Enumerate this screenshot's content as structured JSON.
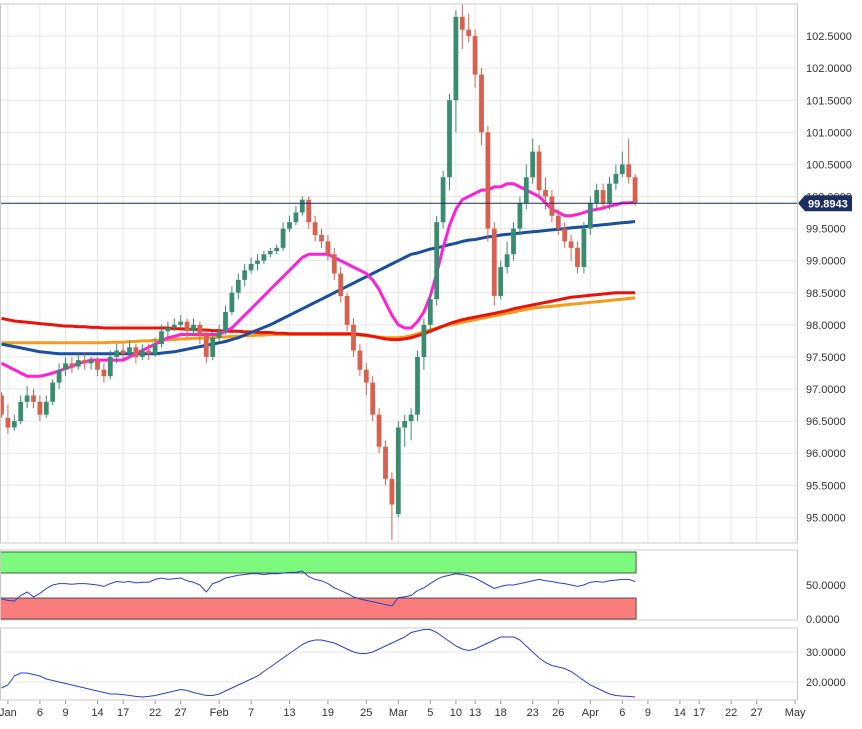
{
  "chart_data": {
    "type": "candlestick",
    "last_price_label": "99.8943",
    "last_price": 99.8943,
    "x_tick_labels": [
      "Jan",
      "6",
      "9",
      "14",
      "17",
      "22",
      "27",
      "Feb",
      "7",
      "13",
      "19",
      "25",
      "Mar",
      "5",
      "10",
      "13",
      "18",
      "23",
      "26",
      "Apr",
      "6",
      "9",
      "14",
      "17",
      "22",
      "27",
      "May"
    ],
    "x_tick_index": [
      1,
      6,
      10,
      15,
      19,
      24,
      28,
      34,
      39,
      45,
      51,
      57,
      62,
      67,
      71,
      74,
      78,
      83,
      87,
      92,
      97,
      101,
      106,
      109,
      114,
      118,
      124
    ],
    "price_axis": {
      "ylim": [
        94.6,
        103.0
      ],
      "ticks": [
        95.0,
        95.5,
        96.0,
        96.5,
        97.0,
        97.5,
        98.0,
        98.5,
        99.0,
        99.5,
        100.0,
        100.5,
        101.0,
        101.5,
        102.0,
        102.5
      ],
      "tick_labels": [
        "95.0000",
        "95.5000",
        "96.0000",
        "96.5000",
        "97.0000",
        "97.5000",
        "98.0000",
        "98.5000",
        "99.0000",
        "99.5000",
        "100.0000",
        "100.5000",
        "101.0000",
        "101.5000",
        "102.0000",
        "102.5000"
      ]
    },
    "candles": [
      [
        96.9,
        96.6,
        96.95,
        96.55
      ],
      [
        96.55,
        96.4,
        96.75,
        96.3
      ],
      [
        96.4,
        96.5,
        96.6,
        96.35
      ],
      [
        96.5,
        96.8,
        96.9,
        96.45
      ],
      [
        96.8,
        96.9,
        97.05,
        96.7
      ],
      [
        96.9,
        96.8,
        97.0,
        96.7
      ],
      [
        96.8,
        96.6,
        96.9,
        96.5
      ],
      [
        96.6,
        96.8,
        96.9,
        96.55
      ],
      [
        96.8,
        97.1,
        97.15,
        96.75
      ],
      [
        97.1,
        97.3,
        97.4,
        97.0
      ],
      [
        97.3,
        97.4,
        97.5,
        97.2
      ],
      [
        97.4,
        97.35,
        97.5,
        97.25
      ],
      [
        97.35,
        97.45,
        97.55,
        97.3
      ],
      [
        97.45,
        97.4,
        97.55,
        97.3
      ],
      [
        97.4,
        97.45,
        97.5,
        97.3
      ],
      [
        97.45,
        97.3,
        97.5,
        97.2
      ],
      [
        97.3,
        97.2,
        97.4,
        97.1
      ],
      [
        97.2,
        97.5,
        97.6,
        97.15
      ],
      [
        97.5,
        97.6,
        97.7,
        97.4
      ],
      [
        97.6,
        97.55,
        97.7,
        97.45
      ],
      [
        97.55,
        97.65,
        97.75,
        97.5
      ],
      [
        97.65,
        97.5,
        97.7,
        97.4
      ],
      [
        97.5,
        97.6,
        97.7,
        97.45
      ],
      [
        97.6,
        97.55,
        97.7,
        97.45
      ],
      [
        97.55,
        97.7,
        97.8,
        97.5
      ],
      [
        97.7,
        97.9,
        98.0,
        97.65
      ],
      [
        97.9,
        97.95,
        98.05,
        97.8
      ],
      [
        97.95,
        98.0,
        98.1,
        97.9
      ],
      [
        98.0,
        98.05,
        98.15,
        97.95
      ],
      [
        98.05,
        97.9,
        98.1,
        97.8
      ],
      [
        97.9,
        98.0,
        98.1,
        97.85
      ],
      [
        98.0,
        97.85,
        98.05,
        97.7
      ],
      [
        97.85,
        97.5,
        97.9,
        97.4
      ],
      [
        97.5,
        97.8,
        97.9,
        97.45
      ],
      [
        97.8,
        97.9,
        98.0,
        97.75
      ],
      [
        97.9,
        98.2,
        98.3,
        97.85
      ],
      [
        98.2,
        98.5,
        98.6,
        98.15
      ],
      [
        98.5,
        98.7,
        98.8,
        98.4
      ],
      [
        98.7,
        98.85,
        98.95,
        98.6
      ],
      [
        98.85,
        98.95,
        99.05,
        98.8
      ],
      [
        98.95,
        99.0,
        99.1,
        98.85
      ],
      [
        99.0,
        99.1,
        99.15,
        98.95
      ],
      [
        99.1,
        99.15,
        99.2,
        99.05
      ],
      [
        99.15,
        99.2,
        99.25,
        99.1
      ],
      [
        99.2,
        99.5,
        99.6,
        99.15
      ],
      [
        99.5,
        99.6,
        99.7,
        99.45
      ],
      [
        99.6,
        99.75,
        99.85,
        99.55
      ],
      [
        99.75,
        99.95,
        100.0,
        99.7
      ],
      [
        99.95,
        99.6,
        100.0,
        99.5
      ],
      [
        99.6,
        99.4,
        99.7,
        99.3
      ],
      [
        99.4,
        99.3,
        99.5,
        99.2
      ],
      [
        99.3,
        99.1,
        99.4,
        99.0
      ],
      [
        99.1,
        98.8,
        99.2,
        98.7
      ],
      [
        98.8,
        98.45,
        98.9,
        98.35
      ],
      [
        98.45,
        98.0,
        98.5,
        97.9
      ],
      [
        98.0,
        97.6,
        98.1,
        97.5
      ],
      [
        97.6,
        97.3,
        97.7,
        97.2
      ],
      [
        97.3,
        97.1,
        97.4,
        96.9
      ],
      [
        97.1,
        96.6,
        97.2,
        96.5
      ],
      [
        96.6,
        96.1,
        96.7,
        96.0
      ],
      [
        96.1,
        95.6,
        96.2,
        95.5
      ],
      [
        95.6,
        95.2,
        95.7,
        94.65
      ],
      [
        95.05,
        96.4,
        96.5,
        95.0
      ],
      [
        96.4,
        96.5,
        96.6,
        96.1
      ],
      [
        96.5,
        96.6,
        96.7,
        96.2
      ],
      [
        96.6,
        97.5,
        97.6,
        96.5
      ],
      [
        97.5,
        98.0,
        98.1,
        97.3
      ],
      [
        98.0,
        98.4,
        98.5,
        97.9
      ],
      [
        98.4,
        99.6,
        99.7,
        98.3
      ],
      [
        99.6,
        100.3,
        100.4,
        99.5
      ],
      [
        100.3,
        101.5,
        101.6,
        100.1
      ],
      [
        101.5,
        102.8,
        102.9,
        101.0
      ],
      [
        102.8,
        102.6,
        103.0,
        102.3
      ],
      [
        102.6,
        102.5,
        102.85,
        102.4
      ],
      [
        102.5,
        101.9,
        102.6,
        101.7
      ],
      [
        101.9,
        101.0,
        102.0,
        100.8
      ],
      [
        101.0,
        99.5,
        101.1,
        99.3
      ],
      [
        99.5,
        98.45,
        99.6,
        98.3
      ],
      [
        98.45,
        98.9,
        99.0,
        98.4
      ],
      [
        98.9,
        99.1,
        99.3,
        98.8
      ],
      [
        99.1,
        99.5,
        99.6,
        99.0
      ],
      [
        99.5,
        99.9,
        100.0,
        99.4
      ],
      [
        99.9,
        100.3,
        100.5,
        99.8
      ],
      [
        100.3,
        100.7,
        100.9,
        100.2
      ],
      [
        100.7,
        100.1,
        100.8,
        100.0
      ],
      [
        100.1,
        100.0,
        100.3,
        99.8
      ],
      [
        100.0,
        99.7,
        100.1,
        99.6
      ],
      [
        99.7,
        99.5,
        99.8,
        99.4
      ],
      [
        99.5,
        99.3,
        99.6,
        99.2
      ],
      [
        99.3,
        99.2,
        99.4,
        99.0
      ],
      [
        99.2,
        98.9,
        99.3,
        98.8
      ],
      [
        98.9,
        99.5,
        99.6,
        98.8
      ],
      [
        99.5,
        99.9,
        100.0,
        99.4
      ],
      [
        99.9,
        100.1,
        100.2,
        99.8
      ],
      [
        100.1,
        99.9,
        100.2,
        99.8
      ],
      [
        99.9,
        100.2,
        100.3,
        99.8
      ],
      [
        100.2,
        100.35,
        100.5,
        100.1
      ],
      [
        100.35,
        100.5,
        100.7,
        100.3
      ],
      [
        100.5,
        100.3,
        100.9,
        100.2
      ],
      [
        100.3,
        99.89,
        100.35,
        99.85
      ]
    ],
    "ma_pink": [
      97.4,
      97.35,
      97.3,
      97.25,
      97.2,
      97.2,
      97.2,
      97.22,
      97.25,
      97.28,
      97.32,
      97.35,
      97.4,
      97.42,
      97.45,
      97.45,
      97.45,
      97.45,
      97.45,
      97.45,
      97.5,
      97.55,
      97.6,
      97.65,
      97.7,
      97.75,
      97.8,
      97.82,
      97.85,
      97.85,
      97.85,
      97.85,
      97.85,
      97.85,
      97.85,
      97.9,
      97.95,
      98.05,
      98.15,
      98.25,
      98.35,
      98.45,
      98.55,
      98.65,
      98.75,
      98.85,
      98.95,
      99.05,
      99.1,
      99.1,
      99.1,
      99.1,
      99.05,
      99.0,
      98.95,
      98.9,
      98.85,
      98.8,
      98.7,
      98.55,
      98.35,
      98.15,
      98.0,
      97.95,
      97.95,
      98.05,
      98.2,
      98.45,
      98.8,
      99.2,
      99.55,
      99.8,
      99.95,
      100.0,
      100.05,
      100.1,
      100.1,
      100.15,
      100.15,
      100.2,
      100.2,
      100.15,
      100.1,
      100.05,
      100.0,
      99.9,
      99.8,
      99.75,
      99.7,
      99.7,
      99.72,
      99.75,
      99.78,
      99.8,
      99.82,
      99.85,
      99.87,
      99.9,
      99.9,
      99.91
    ],
    "ma_blue": [
      97.7,
      97.68,
      97.66,
      97.64,
      97.62,
      97.6,
      97.58,
      97.57,
      97.56,
      97.55,
      97.55,
      97.55,
      97.55,
      97.55,
      97.55,
      97.55,
      97.55,
      97.55,
      97.55,
      97.55,
      97.55,
      97.55,
      97.55,
      97.55,
      97.55,
      97.56,
      97.57,
      97.58,
      97.6,
      97.62,
      97.64,
      97.66,
      97.68,
      97.7,
      97.72,
      97.74,
      97.77,
      97.8,
      97.84,
      97.88,
      97.92,
      97.96,
      98.0,
      98.05,
      98.1,
      98.15,
      98.2,
      98.25,
      98.3,
      98.35,
      98.4,
      98.45,
      98.5,
      98.55,
      98.6,
      98.65,
      98.7,
      98.75,
      98.8,
      98.85,
      98.9,
      98.95,
      99.0,
      99.05,
      99.1,
      99.12,
      99.15,
      99.18,
      99.2,
      99.22,
      99.25,
      99.27,
      99.3,
      99.32,
      99.33,
      99.35,
      99.37,
      99.38,
      99.4,
      99.41,
      99.42,
      99.43,
      99.44,
      99.45,
      99.46,
      99.47,
      99.48,
      99.49,
      99.5,
      99.51,
      99.52,
      99.53,
      99.54,
      99.55,
      99.56,
      99.57,
      99.58,
      99.59,
      99.6,
      99.61
    ],
    "ma_red": [
      98.1,
      98.08,
      98.06,
      98.05,
      98.04,
      98.03,
      98.02,
      98.01,
      98.0,
      97.99,
      97.98,
      97.98,
      97.97,
      97.97,
      97.96,
      97.96,
      97.95,
      97.95,
      97.95,
      97.95,
      97.95,
      97.95,
      97.95,
      97.95,
      97.95,
      97.95,
      97.95,
      97.94,
      97.94,
      97.93,
      97.93,
      97.92,
      97.92,
      97.91,
      97.91,
      97.9,
      97.9,
      97.9,
      97.89,
      97.89,
      97.88,
      97.88,
      97.88,
      97.87,
      97.87,
      97.86,
      97.86,
      97.86,
      97.86,
      97.86,
      97.86,
      97.86,
      97.86,
      97.86,
      97.86,
      97.86,
      97.85,
      97.84,
      97.82,
      97.8,
      97.78,
      97.77,
      97.77,
      97.78,
      97.8,
      97.83,
      97.86,
      97.9,
      97.94,
      97.98,
      98.02,
      98.05,
      98.08,
      98.1,
      98.12,
      98.14,
      98.16,
      98.18,
      98.2,
      98.22,
      98.25,
      98.27,
      98.29,
      98.31,
      98.33,
      98.35,
      98.37,
      98.39,
      98.41,
      98.43,
      98.44,
      98.45,
      98.46,
      98.47,
      98.48,
      98.49,
      98.5,
      98.5,
      98.5,
      98.5
    ],
    "ma_orange": [
      97.72,
      97.72,
      97.72,
      97.72,
      97.72,
      97.72,
      97.72,
      97.72,
      97.72,
      97.72,
      97.72,
      97.72,
      97.72,
      97.72,
      97.72,
      97.72,
      97.72,
      97.73,
      97.73,
      97.73,
      97.74,
      97.74,
      97.75,
      97.75,
      97.76,
      97.76,
      97.77,
      97.77,
      97.78,
      97.78,
      97.79,
      97.79,
      97.8,
      97.8,
      97.81,
      97.81,
      97.82,
      97.82,
      97.83,
      97.83,
      97.84,
      97.84,
      97.85,
      97.85,
      97.85,
      97.85,
      97.85,
      97.85,
      97.85,
      97.85,
      97.85,
      97.85,
      97.85,
      97.85,
      97.85,
      97.85,
      97.84,
      97.83,
      97.82,
      97.81,
      97.8,
      97.8,
      97.8,
      97.81,
      97.83,
      97.86,
      97.89,
      97.92,
      97.95,
      97.98,
      98.0,
      98.02,
      98.04,
      98.06,
      98.08,
      98.1,
      98.12,
      98.14,
      98.16,
      98.18,
      98.2,
      98.22,
      98.24,
      98.26,
      98.27,
      98.28,
      98.29,
      98.3,
      98.31,
      98.32,
      98.33,
      98.34,
      98.35,
      98.36,
      98.37,
      98.38,
      98.39,
      98.4,
      98.41,
      98.42
    ],
    "rsi": {
      "ylim": [
        0,
        100
      ],
      "ticks": [
        0,
        50
      ],
      "tick_labels": [
        "0.0000",
        "50.0000"
      ],
      "overbought_band": [
        70,
        100
      ],
      "oversold_band": [
        0,
        30
      ],
      "values": [
        30,
        28,
        27,
        35,
        40,
        33,
        38,
        45,
        50,
        52,
        52,
        51,
        52,
        52,
        51,
        50,
        48,
        52,
        55,
        54,
        55,
        53,
        54,
        54,
        58,
        60,
        58,
        59,
        60,
        56,
        54,
        50,
        40,
        52,
        55,
        60,
        62,
        64,
        65,
        66,
        66,
        65,
        66,
        66,
        67,
        68,
        68,
        70,
        62,
        58,
        56,
        52,
        46,
        42,
        38,
        33,
        30,
        28,
        26,
        24,
        22,
        20,
        32,
        33,
        35,
        42,
        46,
        52,
        58,
        62,
        64,
        66,
        65,
        63,
        60,
        55,
        50,
        45,
        48,
        50,
        50,
        52,
        54,
        56,
        58,
        56,
        55,
        53,
        52,
        50,
        48,
        50,
        54,
        55,
        54,
        56,
        57,
        58,
        58,
        55
      ]
    },
    "adx": {
      "ylim": [
        14,
        38
      ],
      "ticks": [
        20,
        30
      ],
      "tick_labels": [
        "20.0000",
        "30.0000"
      ],
      "values": [
        18,
        19,
        22,
        23,
        23,
        22.5,
        22,
        21,
        20.5,
        20,
        19.5,
        19,
        18.5,
        18,
        17.5,
        17,
        16.5,
        16,
        16,
        15.8,
        15.5,
        15.2,
        15,
        15.2,
        15.5,
        16,
        16.5,
        17,
        17.5,
        17.2,
        16.5,
        16,
        15.5,
        15.5,
        16,
        17,
        18,
        19,
        20,
        21,
        22,
        23.5,
        25,
        26.5,
        28,
        29.5,
        31,
        32.5,
        33.5,
        34,
        34,
        33.5,
        33,
        32,
        31,
        30,
        29.5,
        29.5,
        30,
        31,
        32,
        33,
        34,
        35,
        36.5,
        37,
        37.5,
        37.5,
        36.5,
        35,
        33.5,
        32,
        31,
        30.5,
        31,
        32,
        33,
        34,
        35,
        35,
        35,
        34,
        32,
        30,
        28,
        26.5,
        25.5,
        25,
        24.5,
        23.5,
        22,
        20.5,
        19,
        18,
        17,
        16,
        15.5,
        15.3,
        15.2,
        15
      ]
    },
    "series_colors": {
      "up": "#3a8c6e",
      "down": "#d9604f",
      "ma_pink": "#ff1fd8",
      "ma_blue": "#1a4fa0",
      "ma_red": "#e8140c",
      "ma_orange": "#f59a1a",
      "rsi": "#2c3fd6",
      "adx": "#2c3fd6",
      "last_price_line": "#1b2f63"
    }
  }
}
